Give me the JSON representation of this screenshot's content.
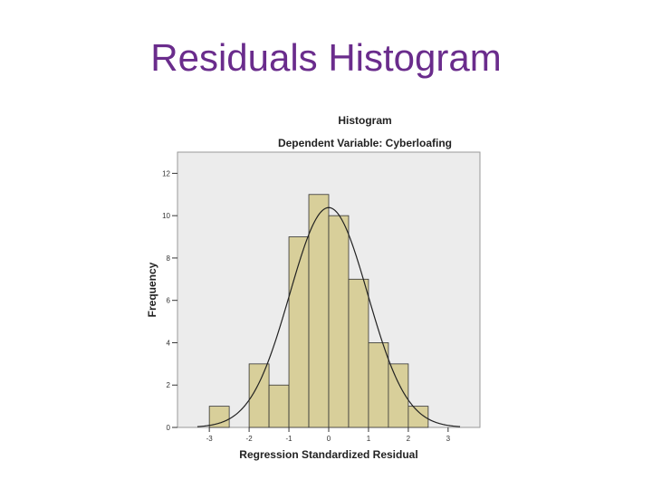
{
  "slide": {
    "title": "Residuals Histogram"
  },
  "colors": {
    "title": "#6a2c8c",
    "plot_bg": "#ececec",
    "bar_fill": "#d8cf9a",
    "bar_stroke": "#333333",
    "curve": "#222222"
  },
  "chart_data": {
    "type": "bar",
    "title": "Histogram",
    "subtitle": "Dependent Variable: Cyberloafing",
    "xlabel": "Regression Standardized Residual",
    "ylabel": "Frequency",
    "xlim": [
      -3.8,
      3.8
    ],
    "ylim": [
      0,
      13
    ],
    "x_ticks": [
      -3,
      -2,
      -1,
      0,
      1,
      2,
      3
    ],
    "y_ticks": [
      0,
      2,
      4,
      6,
      8,
      10,
      12
    ],
    "bin_width": 0.5,
    "bins": [
      {
        "start": -3.0,
        "end": -2.5,
        "count": 1
      },
      {
        "start": -2.5,
        "end": -2.0,
        "count": 0
      },
      {
        "start": -2.0,
        "end": -1.5,
        "count": 3
      },
      {
        "start": -1.5,
        "end": -1.0,
        "count": 2
      },
      {
        "start": -1.0,
        "end": -0.5,
        "count": 9
      },
      {
        "start": -0.5,
        "end": 0.0,
        "count": 11
      },
      {
        "start": 0.0,
        "end": 0.5,
        "count": 10
      },
      {
        "start": 0.5,
        "end": 1.0,
        "count": 7
      },
      {
        "start": 1.0,
        "end": 1.5,
        "count": 4
      },
      {
        "start": 1.5,
        "end": 2.0,
        "count": 3
      },
      {
        "start": 2.0,
        "end": 2.5,
        "count": 1
      }
    ],
    "normal_curve": {
      "mean": 0,
      "sd": 0.98,
      "n": 51
    }
  }
}
